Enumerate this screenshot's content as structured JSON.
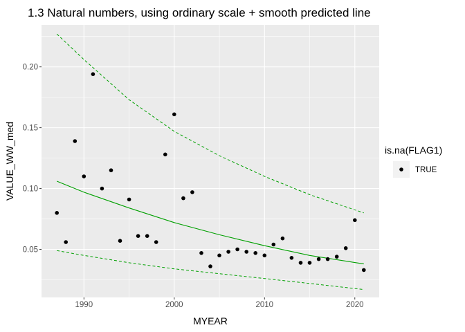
{
  "chart_data": {
    "type": "scatter",
    "title": "1.3 Natural numbers, using ordinary scale + smooth predicted line",
    "xlabel": "MYEAR",
    "ylabel": "VALUE_WW_med",
    "xlim": [
      1985.3,
      2022.7
    ],
    "ylim": [
      0.0105,
      0.2345
    ],
    "x_ticks": [
      1990,
      2000,
      2010,
      2020
    ],
    "y_ticks": [
      0.05,
      0.1,
      0.15,
      0.2
    ],
    "y_tick_labels": [
      "0.05",
      "0.10",
      "0.15",
      "0.20"
    ],
    "grid": true,
    "legend": {
      "title": "is.na(FLAG1)",
      "entries": [
        "TRUE"
      ],
      "placement": "right"
    },
    "colors": {
      "panel": "#ebebeb",
      "grid": "#ffffff",
      "points": "#000000",
      "fit_line": "#00a000"
    },
    "series": [
      {
        "kind": "points",
        "name": "TRUE",
        "x": [
          1987,
          1988,
          1989,
          1990,
          1991,
          1992,
          1993,
          1994,
          1995,
          1996,
          1997,
          1998,
          1999,
          2000,
          2001,
          2002,
          2003,
          2004,
          2005,
          2006,
          2007,
          2008,
          2009,
          2010,
          2011,
          2012,
          2013,
          2014,
          2015,
          2016,
          2017,
          2018,
          2019,
          2020,
          2021
        ],
        "y": [
          0.08,
          0.056,
          0.139,
          0.11,
          0.194,
          0.1,
          0.115,
          0.057,
          0.091,
          0.061,
          0.061,
          0.056,
          0.128,
          0.161,
          0.092,
          0.097,
          0.047,
          0.036,
          0.045,
          0.048,
          0.05,
          0.048,
          0.047,
          0.045,
          0.054,
          0.059,
          0.043,
          0.039,
          0.039,
          0.042,
          0.042,
          0.044,
          0.051,
          0.074,
          0.033
        ]
      },
      {
        "kind": "fit",
        "x": [
          1987,
          1990,
          1995,
          2000,
          2005,
          2010,
          2015,
          2021
        ],
        "y": [
          0.106,
          0.097,
          0.084,
          0.072,
          0.062,
          0.053,
          0.045,
          0.038
        ]
      },
      {
        "kind": "upper",
        "x": [
          1987,
          1990,
          1995,
          2000,
          2005,
          2010,
          2015,
          2021
        ],
        "y": [
          0.227,
          0.206,
          0.173,
          0.147,
          0.127,
          0.11,
          0.095,
          0.08
        ]
      },
      {
        "kind": "lower",
        "x": [
          1987,
          1990,
          1995,
          2000,
          2005,
          2010,
          2015,
          2021
        ],
        "y": [
          0.049,
          0.045,
          0.039,
          0.034,
          0.03,
          0.026,
          0.022,
          0.017
        ]
      }
    ]
  }
}
